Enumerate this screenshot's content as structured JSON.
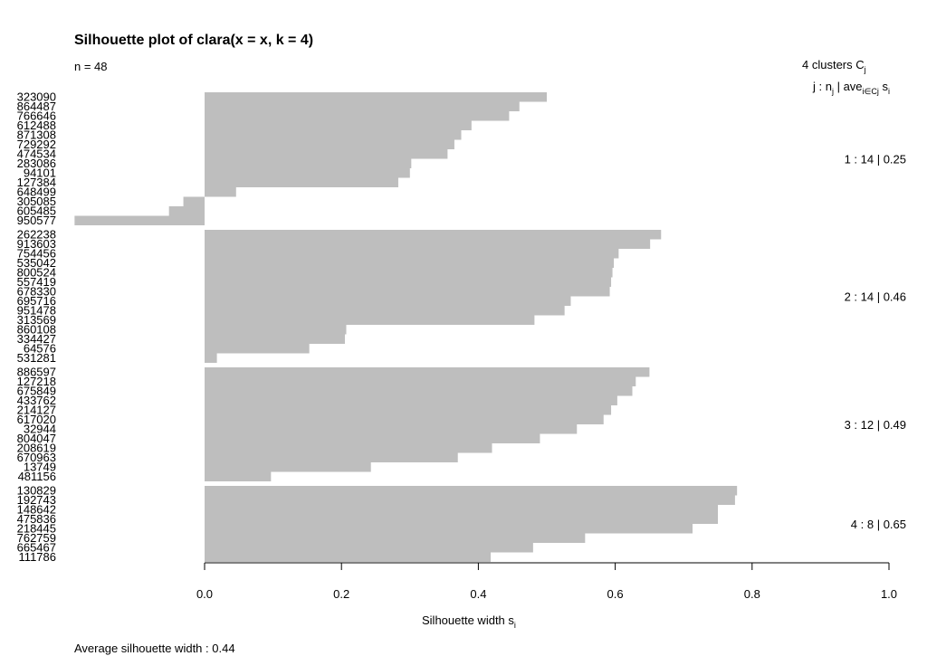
{
  "chart_data": {
    "type": "bar",
    "orientation": "horizontal",
    "title": "Silhouette plot of clara(x = x, k = 4)",
    "n_label": "n = 48",
    "header_line1": "4  clusters  C",
    "header_line1_sub": "j",
    "header_line2": {
      "j": "j :  n",
      "j_sub": "j",
      "bar": " | ave",
      "ave_sub": "i∈Cj",
      "s": "  s",
      "s_sub": "i"
    },
    "xlabel": "Silhouette width s",
    "xlabel_sub": "i",
    "xlim": [
      0,
      1
    ],
    "xticks": [
      "0.0",
      "0.2",
      "0.4",
      "0.6",
      "0.8",
      "1.0"
    ],
    "footer": "Average silhouette width :  0.44",
    "bar_color": "#bebebe",
    "clusters": [
      {
        "summary": "1 :   14  |  0.25",
        "labels": [
          "323090",
          "864487",
          "766646",
          "612488",
          "871308",
          "729292",
          "474534",
          "283086",
          "94101",
          "127384",
          "648499",
          "305085",
          "605485",
          "950577"
        ],
        "values": [
          0.5,
          0.46,
          0.445,
          0.39,
          0.375,
          0.365,
          0.355,
          0.302,
          0.3,
          0.283,
          0.046,
          -0.031,
          -0.052,
          -0.19
        ]
      },
      {
        "summary": "2 :   14  |  0.46",
        "labels": [
          "262238",
          "913603",
          "754456",
          "535042",
          "800524",
          "557419",
          "678330",
          "695716",
          "951478",
          "313569",
          "860108",
          "334427",
          "64576",
          "531281"
        ],
        "values": [
          0.667,
          0.651,
          0.605,
          0.598,
          0.596,
          0.594,
          0.592,
          0.535,
          0.526,
          0.482,
          0.207,
          0.205,
          0.153,
          0.018
        ]
      },
      {
        "summary": "3 :   12  |  0.49",
        "labels": [
          "886597",
          "127218",
          "675849",
          "433762",
          "214127",
          "617020",
          "32944",
          "804047",
          "208619",
          "670963",
          "13749",
          "481156"
        ],
        "values": [
          0.65,
          0.63,
          0.625,
          0.603,
          0.594,
          0.583,
          0.544,
          0.49,
          0.42,
          0.37,
          0.243,
          0.097
        ]
      },
      {
        "summary": "4 :    8  |  0.65",
        "labels": [
          "130829",
          "192743",
          "148642",
          "475836",
          "218445",
          "762759",
          "665467",
          "111786"
        ],
        "values": [
          0.778,
          0.775,
          0.75,
          0.75,
          0.713,
          0.556,
          0.48,
          0.418
        ]
      }
    ]
  }
}
